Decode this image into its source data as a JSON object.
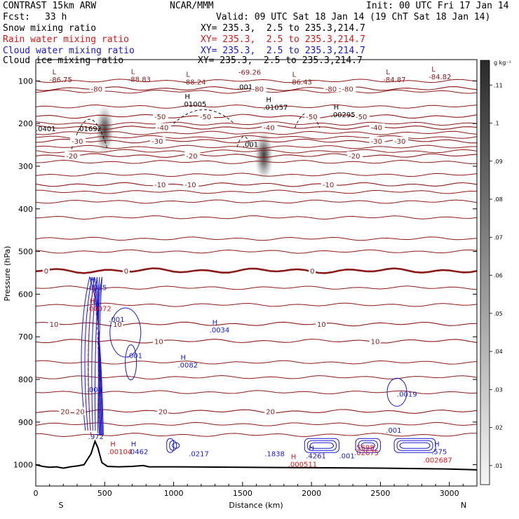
{
  "header": {
    "model": "CONTRAST 15km ARW",
    "fcst_label": "Fcst:",
    "fcst_value": "33 h",
    "org": "NCAR/MMM",
    "init": "Init: 00 UTC Fri 17 Jan 14",
    "valid": "Valid: 09 UTC Sat 18 Jan 14 (19 ChT Sat 18 Jan 14)"
  },
  "fields": [
    {
      "name": "Snow mixing ratio",
      "xy": "XY= 235.3,  2.5 to 235.3,214.7",
      "color": "#000000"
    },
    {
      "name": "Rain water mixing ratio",
      "xy": "XY= 235.3,  2.5 to 235.3,214.7",
      "color": "#d81818"
    },
    {
      "name": "Cloud water mixing ratio",
      "xy": "XY= 235.3,  2.5 to 235.3,214.7",
      "color": "#1818d0"
    },
    {
      "name": "Cloud ice mixing ratio",
      "xy": "XY= 235.3,  2.5 to 235.3,214.7",
      "color": "#000000"
    }
  ],
  "chart_data": {
    "type": "heatmap",
    "title": "",
    "xlabel": "Distance (km)",
    "ylabel": "Pressure (hPa)",
    "xlim": [
      0,
      3200
    ],
    "ylim": [
      1050,
      50
    ],
    "x_ticks": [
      "0",
      "500",
      "1000",
      "1500",
      "2000",
      "2500",
      "3000"
    ],
    "x_tick_values": [
      0,
      500,
      1000,
      1500,
      2000,
      2500,
      3000
    ],
    "y_ticks": [
      "100",
      "200",
      "300",
      "400",
      "500",
      "600",
      "700",
      "800",
      "900",
      "1000"
    ],
    "y_tick_values": [
      100,
      200,
      300,
      400,
      500,
      600,
      700,
      800,
      900,
      1000
    ],
    "x_end_labels": [
      "S",
      "N"
    ],
    "colorbar": {
      "unit": "g kg⁻¹",
      "ticks": [
        ".11",
        ".1",
        ".09",
        ".08",
        ".07",
        ".06",
        ".05",
        ".04",
        ".03",
        ".02",
        ".01"
      ],
      "tick_values": [
        0.11,
        0.1,
        0.09,
        0.08,
        0.07,
        0.06,
        0.05,
        0.04,
        0.03,
        0.02,
        0.01
      ]
    },
    "snow_maxima": [
      {
        "x": 500,
        "p": 215,
        "peak": 0.1
      },
      {
        "x": 1655,
        "p": 275,
        "peak": 0.11
      }
    ],
    "temperature_contours": [
      {
        "value": -80,
        "p": 118,
        "label": "-80",
        "label_x": [
          400,
          1570,
          2100,
          2220
        ]
      },
      {
        "value": -50,
        "p": 183,
        "label": "-50",
        "label_x": [
          860,
          1190,
          1960,
          2320
        ]
      },
      {
        "value": -40,
        "p": 209,
        "label": "-40",
        "label_x": [
          880,
          1650,
          2430
        ]
      },
      {
        "value": -30,
        "p": 241,
        "label": "-30",
        "label_x": [
          260,
          840,
          2430,
          2600
        ]
      },
      {
        "value": -20,
        "p": 275,
        "label": "-20",
        "label_x": [
          220,
          1090,
          2270
        ]
      },
      {
        "value": -10,
        "p": 343,
        "label": "-10",
        "label_x": [
          860,
          1080,
          2080
        ]
      },
      {
        "value": 0,
        "p": 545,
        "label": "0",
        "label_x": [
          60,
          640,
          1990
        ]
      },
      {
        "value": 10,
        "p": 670,
        "label": "10",
        "label_x": [
          100,
          560,
          2040
        ]
      },
      {
        "value": 10,
        "p": 710,
        "label": "10",
        "label_x": [
          860,
          2430
        ]
      },
      {
        "value": 20,
        "p": 875,
        "label": "20",
        "label_x": [
          180,
          290,
          890,
          1670
        ]
      }
    ],
    "extra_isotherms_hpa": [
      100,
      125,
      160,
      200,
      222,
      232,
      255,
      265,
      290,
      320,
      360,
      383,
      420,
      470,
      500,
      585,
      625,
      760,
      795,
      830,
      905,
      930
    ],
    "low_labels": [
      {
        "text": "L",
        "value": "-86.75",
        "x": 100,
        "p": 103
      },
      {
        "text": "L",
        "value": "-88.83",
        "x": 670,
        "p": 102
      },
      {
        "text": "L",
        "value": "-88.24",
        "x": 1070,
        "p": 108
      },
      {
        "text": "L",
        "value": "-86.43",
        "x": 1840,
        "p": 108
      },
      {
        "text": "L",
        "value": "-84.87",
        "x": 2520,
        "p": 103
      },
      {
        "text": "L",
        "value": "-84.82",
        "x": 2850,
        "p": 96
      },
      {
        "text": "",
        "value": "-69.26",
        "x": 1470,
        "p": 85
      }
    ],
    "ice_labels": [
      {
        "text": "H",
        "value": ".01005",
        "x": 1060,
        "p": 160
      },
      {
        "text": "H",
        "value": ".01057",
        "x": 1650,
        "p": 168
      },
      {
        "text": "H",
        "value": ".00295",
        "x": 2140,
        "p": 185
      },
      {
        "text": "",
        "value": ".0401",
        "x": 0,
        "p": 218
      },
      {
        "text": "",
        "value": ".01692",
        "x": 300,
        "p": 218
      },
      {
        "text": "",
        "value": ".001",
        "x": 1500,
        "p": 255
      },
      {
        "text": "",
        "value": ".001",
        "x": 1460,
        "p": 120
      }
    ],
    "cloud_water_labels": [
      {
        "text": "H",
        "value": ".6985",
        "x": 370,
        "p": 590
      },
      {
        "text": "",
        "value": ".001",
        "x": 530,
        "p": 665
      },
      {
        "text": "H",
        "value": ".0034",
        "x": 1260,
        "p": 690
      },
      {
        "text": "",
        "value": ".001",
        "x": 660,
        "p": 750
      },
      {
        "text": "H",
        "value": ".0082",
        "x": 1030,
        "p": 772
      },
      {
        "text": "",
        "value": ".001",
        "x": 370,
        "p": 830
      },
      {
        "text": "",
        "value": ".0019",
        "x": 2620,
        "p": 840
      },
      {
        "text": "",
        "value": ".001",
        "x": 2540,
        "p": 925
      },
      {
        "text": "",
        "value": ".972",
        "x": 380,
        "p": 940
      },
      {
        "text": "H",
        "value": ".0462",
        "x": 670,
        "p": 975
      },
      {
        "text": "",
        "value": ".0217",
        "x": 1110,
        "p": 980
      },
      {
        "text": "",
        "value": ".1838",
        "x": 1660,
        "p": 980
      },
      {
        "text": "H",
        "value": ".4261",
        "x": 1960,
        "p": 985
      },
      {
        "text": "",
        "value": ".001",
        "x": 2200,
        "p": 985
      },
      {
        "text": "H",
        "value": ".575",
        "x": 2870,
        "p": 975
      }
    ],
    "rain_labels": [
      {
        "text": "H",
        "value": ".00072",
        "x": 370,
        "p": 640
      },
      {
        "text": "H",
        "value": ".00104",
        "x": 520,
        "p": 975
      },
      {
        "text": "H",
        "value": ".000511",
        "x": 1830,
        "p": 1005
      },
      {
        "text": "",
        "value": ".5698",
        "x": 2310,
        "p": 965
      },
      {
        "text": "",
        "value": ".02675",
        "x": 2310,
        "p": 978
      },
      {
        "text": "",
        "value": ".002687",
        "x": 2810,
        "p": 995
      }
    ],
    "terrain_profile": [
      [
        0,
        1000
      ],
      [
        50,
        1004
      ],
      [
        100,
        1006
      ],
      [
        150,
        1005
      ],
      [
        200,
        1008
      ],
      [
        250,
        1005
      ],
      [
        300,
        1003
      ],
      [
        350,
        1000
      ],
      [
        400,
        975
      ],
      [
        430,
        945
      ],
      [
        450,
        960
      ],
      [
        480,
        995
      ],
      [
        520,
        1004
      ],
      [
        600,
        1005
      ],
      [
        700,
        1004
      ],
      [
        780,
        1002
      ],
      [
        820,
        1005
      ],
      [
        1000,
        1005
      ],
      [
        1500,
        1006
      ],
      [
        2000,
        1007
      ],
      [
        2500,
        1008
      ],
      [
        3000,
        1010
      ],
      [
        3200,
        1012
      ]
    ]
  }
}
